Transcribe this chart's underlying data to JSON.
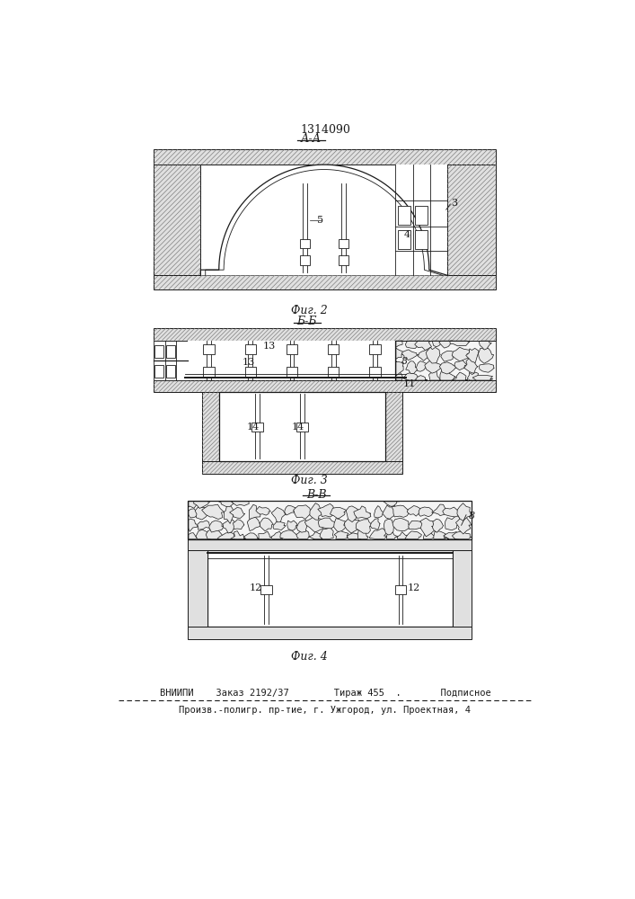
{
  "title": "1314090",
  "fig2_label": "А-А",
  "fig3_label": "Б-Б",
  "fig4_label": "В-В",
  "caption2": "Фиг. 2",
  "caption3": "Фиг. 3",
  "caption4": "Фиг. 4",
  "footer_line1": "ВНИИПИ    Заказ 2192/37        Тираж 455  .       Подписное",
  "footer_line2": "Произв.-полигр. пр-тие, г. Ужгород, ул. Проектная, 4",
  "bg_color": "#ffffff",
  "line_color": "#1a1a1a"
}
